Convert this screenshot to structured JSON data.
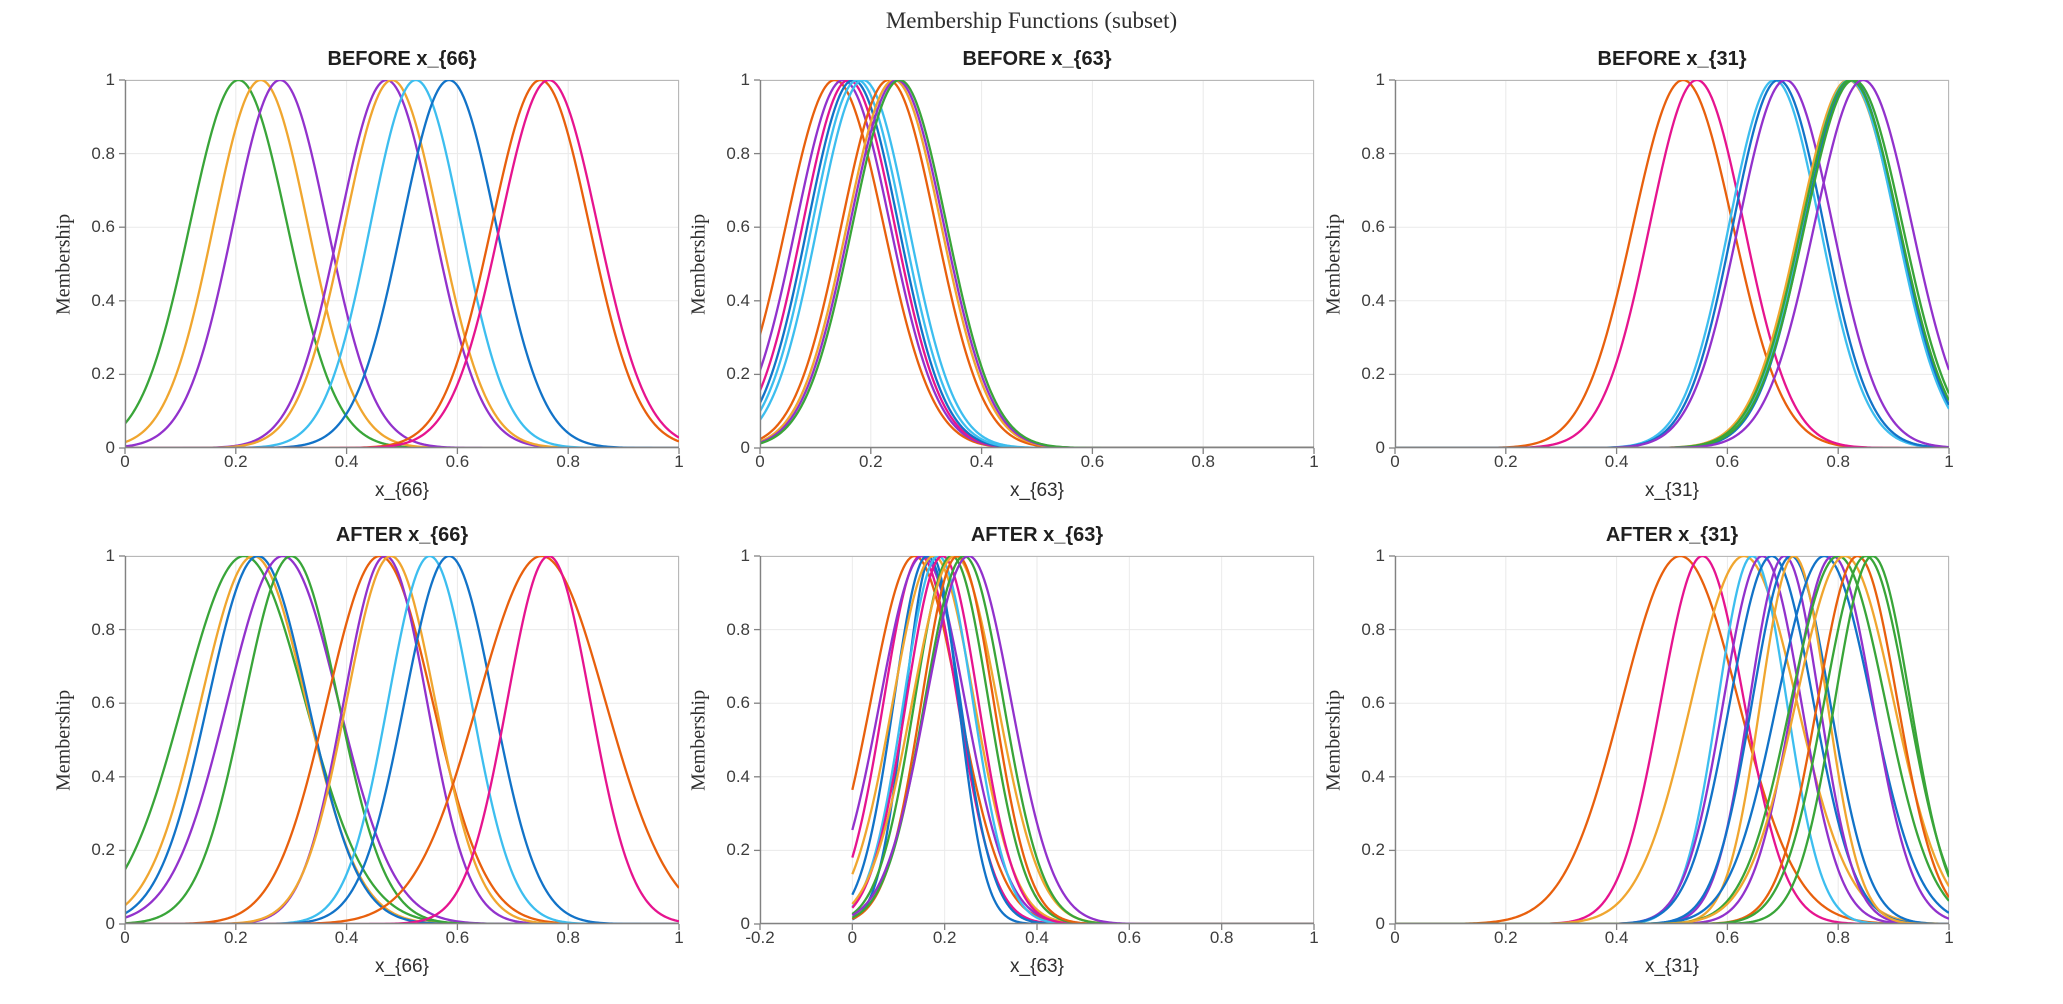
{
  "figure_title": "Membership Functions (subset)",
  "palette": {
    "blue": "#1273C8",
    "cyan": "#3DBEEF",
    "orange": "#E8600D",
    "gold": "#F0A62F",
    "purple": "#9232CC",
    "green": "#39A539",
    "magenta": "#E6148F"
  },
  "style": {
    "background": "#FFFFFF",
    "grid_color": "#EAEAEA",
    "box_color": "#B8B8B8",
    "axis_color": "#828282",
    "tick_label_color": "#3D3D3D",
    "curve_width": 2.3
  },
  "chart_data": [
    {
      "type": "line",
      "title": "BEFORE x_{66}",
      "xlabel": "x_{66}",
      "ylabel": "Membership",
      "xlim": [
        0,
        1
      ],
      "ylim": [
        0,
        1
      ],
      "grid": true,
      "legend": "none",
      "xtick_values": [
        0,
        0.2,
        0.4,
        0.6,
        0.8,
        1
      ],
      "xtick_labels": [
        "0",
        "0.2",
        "0.4",
        "0.6",
        "0.8",
        "1"
      ],
      "ytick_values": [
        0,
        0.2,
        0.4,
        0.6,
        0.8,
        1
      ],
      "ytick_labels": [
        "0",
        "0.2",
        "0.4",
        "0.6",
        "0.8",
        "1"
      ],
      "curve_model": "gaussian",
      "curve_range": [
        0,
        1
      ],
      "curves": [
        {
          "color": "green",
          "center": 0.205,
          "sigma": 0.088
        },
        {
          "color": "gold",
          "center": 0.245,
          "sigma": 0.085
        },
        {
          "color": "purple",
          "center": 0.28,
          "sigma": 0.085
        },
        {
          "color": "purple",
          "center": 0.472,
          "sigma": 0.085
        },
        {
          "color": "gold",
          "center": 0.482,
          "sigma": 0.085
        },
        {
          "color": "cyan",
          "center": 0.525,
          "sigma": 0.082
        },
        {
          "color": "blue",
          "center": 0.585,
          "sigma": 0.085
        },
        {
          "color": "orange",
          "center": 0.75,
          "sigma": 0.088
        },
        {
          "color": "magenta",
          "center": 0.765,
          "sigma": 0.088
        }
      ]
    },
    {
      "type": "line",
      "title": "BEFORE x_{63}",
      "xlabel": "x_{63}",
      "ylabel": "Membership",
      "xlim": [
        0,
        1
      ],
      "ylim": [
        0,
        1
      ],
      "grid": true,
      "legend": "none",
      "xtick_values": [
        0,
        0.2,
        0.4,
        0.6,
        0.8,
        1
      ],
      "xtick_labels": [
        "0",
        "0.2",
        "0.4",
        "0.6",
        "0.8",
        "1"
      ],
      "ytick_values": [
        0,
        0.2,
        0.4,
        0.6,
        0.8,
        1
      ],
      "ytick_labels": [
        "0",
        "0.2",
        "0.4",
        "0.6",
        "0.8",
        "1"
      ],
      "curve_model": "gaussian",
      "curve_range": [
        0,
        1
      ],
      "curves": [
        {
          "color": "orange",
          "center": 0.135,
          "sigma": 0.088
        },
        {
          "color": "purple",
          "center": 0.15,
          "sigma": 0.085
        },
        {
          "color": "magenta",
          "center": 0.16,
          "sigma": 0.083
        },
        {
          "color": "blue",
          "center": 0.168,
          "sigma": 0.082
        },
        {
          "color": "cyan",
          "center": 0.176,
          "sigma": 0.082
        },
        {
          "color": "cyan",
          "center": 0.186,
          "sigma": 0.082
        },
        {
          "color": "orange",
          "center": 0.232,
          "sigma": 0.085
        },
        {
          "color": "gold",
          "center": 0.242,
          "sigma": 0.085
        },
        {
          "color": "purple",
          "center": 0.247,
          "sigma": 0.085
        },
        {
          "color": "green",
          "center": 0.252,
          "sigma": 0.085
        }
      ]
    },
    {
      "type": "line",
      "title": "BEFORE x_{31}",
      "xlabel": "x_{31}",
      "ylabel": "Membership",
      "xlim": [
        0,
        1
      ],
      "ylim": [
        0,
        1
      ],
      "grid": true,
      "legend": "none",
      "xtick_values": [
        0,
        0.2,
        0.4,
        0.6,
        0.8,
        1
      ],
      "xtick_labels": [
        "0",
        "0.2",
        "0.4",
        "0.6",
        "0.8",
        "1"
      ],
      "ytick_values": [
        0,
        0.2,
        0.4,
        0.6,
        0.8,
        1
      ],
      "ytick_labels": [
        "0",
        "0.2",
        "0.4",
        "0.6",
        "0.8",
        "1"
      ],
      "curve_model": "gaussian",
      "curve_range": [
        0,
        1
      ],
      "curves": [
        {
          "color": "orange",
          "center": 0.52,
          "sigma": 0.09
        },
        {
          "color": "magenta",
          "center": 0.545,
          "sigma": 0.085
        },
        {
          "color": "cyan",
          "center": 0.685,
          "sigma": 0.082
        },
        {
          "color": "blue",
          "center": 0.692,
          "sigma": 0.082
        },
        {
          "color": "purple",
          "center": 0.705,
          "sigma": 0.085
        },
        {
          "color": "gold",
          "center": 0.818,
          "sigma": 0.088
        },
        {
          "color": "cyan",
          "center": 0.82,
          "sigma": 0.085
        },
        {
          "color": "blue",
          "center": 0.824,
          "sigma": 0.085
        },
        {
          "color": "green",
          "center": 0.822,
          "sigma": 0.088
        },
        {
          "color": "green",
          "center": 0.828,
          "sigma": 0.088
        },
        {
          "color": "purple",
          "center": 0.845,
          "sigma": 0.088
        }
      ]
    },
    {
      "type": "line",
      "title": "AFTER x_{66}",
      "xlabel": "x_{66}",
      "ylabel": "Membership",
      "xlim": [
        0,
        1
      ],
      "ylim": [
        0,
        1
      ],
      "grid": true,
      "legend": "none",
      "xtick_values": [
        0,
        0.2,
        0.4,
        0.6,
        0.8,
        1
      ],
      "xtick_labels": [
        "0",
        "0.2",
        "0.4",
        "0.6",
        "0.8",
        "1"
      ],
      "ytick_values": [
        0,
        0.2,
        0.4,
        0.6,
        0.8,
        1
      ],
      "ytick_labels": [
        "0",
        "0.2",
        "0.4",
        "0.6",
        "0.8",
        "1"
      ],
      "curve_model": "gaussian",
      "curve_range": [
        0,
        1
      ],
      "curves": [
        {
          "color": "green",
          "center": 0.215,
          "sigma": 0.11
        },
        {
          "color": "gold",
          "center": 0.232,
          "sigma": 0.095
        },
        {
          "color": "blue",
          "center": 0.24,
          "sigma": 0.09
        },
        {
          "color": "purple",
          "center": 0.285,
          "sigma": 0.1
        },
        {
          "color": "green",
          "center": 0.3,
          "sigma": 0.085
        },
        {
          "color": "orange",
          "center": 0.46,
          "sigma": 0.095
        },
        {
          "color": "purple",
          "center": 0.47,
          "sigma": 0.075
        },
        {
          "color": "gold",
          "center": 0.48,
          "sigma": 0.08
        },
        {
          "color": "cyan",
          "center": 0.55,
          "sigma": 0.075
        },
        {
          "color": "blue",
          "center": 0.585,
          "sigma": 0.08
        },
        {
          "color": "orange",
          "center": 0.752,
          "sigma": 0.115
        },
        {
          "color": "magenta",
          "center": 0.765,
          "sigma": 0.075
        }
      ]
    },
    {
      "type": "line",
      "title": "AFTER x_{63}",
      "xlabel": "x_{63}",
      "ylabel": "Membership",
      "xlim": [
        -0.2,
        1
      ],
      "ylim": [
        0,
        1
      ],
      "grid": true,
      "legend": "none",
      "xtick_values": [
        -0.2,
        0,
        0.2,
        0.4,
        0.6,
        0.8,
        1
      ],
      "xtick_labels": [
        "-0.2",
        "0",
        "0.2",
        "0.4",
        "0.6",
        "0.8",
        "1"
      ],
      "ytick_values": [
        0,
        0.2,
        0.4,
        0.6,
        0.8,
        1
      ],
      "ytick_labels": [
        "0",
        "0.2",
        "0.4",
        "0.6",
        "0.8",
        "1"
      ],
      "curve_model": "gaussian",
      "curve_range": [
        0,
        1
      ],
      "curves": [
        {
          "color": "orange",
          "center": 0.135,
          "sigma": 0.095
        },
        {
          "color": "magenta",
          "center": 0.148,
          "sigma": 0.08
        },
        {
          "color": "purple",
          "center": 0.152,
          "sigma": 0.092
        },
        {
          "color": "blue",
          "center": 0.162,
          "sigma": 0.072
        },
        {
          "color": "blue",
          "center": 0.172,
          "sigma": 0.058
        },
        {
          "color": "gold",
          "center": 0.176,
          "sigma": 0.088
        },
        {
          "color": "cyan",
          "center": 0.186,
          "sigma": 0.075
        },
        {
          "color": "magenta",
          "center": 0.195,
          "sigma": 0.078
        },
        {
          "color": "green",
          "center": 0.215,
          "sigma": 0.08
        },
        {
          "color": "gold",
          "center": 0.222,
          "sigma": 0.092
        },
        {
          "color": "orange",
          "center": 0.228,
          "sigma": 0.078
        },
        {
          "color": "green",
          "center": 0.242,
          "sigma": 0.085
        },
        {
          "color": "purple",
          "center": 0.252,
          "sigma": 0.092
        }
      ]
    },
    {
      "type": "line",
      "title": "AFTER x_{31}",
      "xlabel": "x_{31}",
      "ylabel": "Membership",
      "xlim": [
        0,
        1
      ],
      "ylim": [
        0,
        1
      ],
      "grid": true,
      "legend": "none",
      "xtick_values": [
        0,
        0.2,
        0.4,
        0.6,
        0.8,
        1
      ],
      "xtick_labels": [
        "0",
        "0.2",
        "0.4",
        "0.6",
        "0.8",
        "1"
      ],
      "ytick_values": [
        0,
        0.2,
        0.4,
        0.6,
        0.8,
        1
      ],
      "ytick_labels": [
        "0",
        "0.2",
        "0.4",
        "0.6",
        "0.8",
        "1"
      ],
      "curve_model": "gaussian",
      "curve_range": [
        0,
        1
      ],
      "curves": [
        {
          "color": "orange",
          "center": 0.515,
          "sigma": 0.105
        },
        {
          "color": "magenta",
          "center": 0.555,
          "sigma": 0.075
        },
        {
          "color": "gold",
          "center": 0.63,
          "sigma": 0.095
        },
        {
          "color": "cyan",
          "center": 0.645,
          "sigma": 0.062
        },
        {
          "color": "purple",
          "center": 0.663,
          "sigma": 0.07
        },
        {
          "color": "blue",
          "center": 0.68,
          "sigma": 0.075
        },
        {
          "color": "purple",
          "center": 0.703,
          "sigma": 0.063
        },
        {
          "color": "blue",
          "center": 0.715,
          "sigma": 0.07
        },
        {
          "color": "gold",
          "center": 0.72,
          "sigma": 0.06
        },
        {
          "color": "blue",
          "center": 0.775,
          "sigma": 0.085
        },
        {
          "color": "purple",
          "center": 0.79,
          "sigma": 0.072
        },
        {
          "color": "green",
          "center": 0.8,
          "sigma": 0.085
        },
        {
          "color": "gold",
          "center": 0.812,
          "sigma": 0.088
        },
        {
          "color": "orange",
          "center": 0.835,
          "sigma": 0.072
        },
        {
          "color": "green",
          "center": 0.85,
          "sigma": 0.075
        },
        {
          "color": "green",
          "center": 0.862,
          "sigma": 0.068
        }
      ]
    }
  ]
}
